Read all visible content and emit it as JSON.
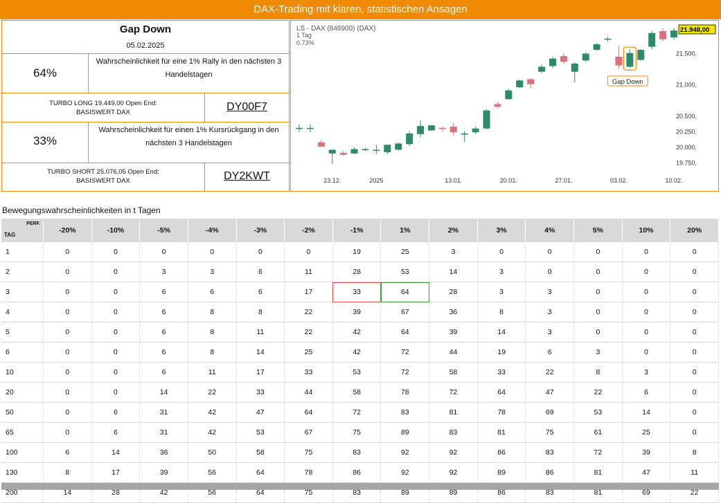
{
  "banner": "DAX-Trading mit klaren, statistischen Ansagen",
  "summary": {
    "title": "Gap Down",
    "date": "05.02.2025",
    "long_pct": "64%",
    "long_text": "Wahrscheinlichkeit für eine 1% Rally in den nächsten 3 Handelstagen",
    "long_product": "TURBO LONG 19.449,00 Open End: BASISWERT DAX",
    "long_wkn": "DY00F7",
    "short_pct": "33%",
    "short_text": "Wahrscheinlichkeit für einen 1% Kursrückgang in den nächsten 3 Handelstagen",
    "short_product": "TURBO SHORT 25.076,05 Open End: BASISWERT DAX",
    "short_wkn": "DY2KWT"
  },
  "chart_data": {
    "type": "candlestick",
    "header_line1": "LS - DAX (846900) (DAX)",
    "header_line2": "1 Tag",
    "header_line3": "0.73%",
    "last_price_label": "21.948,00",
    "annotation": "Gap Down",
    "y_ticks": [
      {
        "v": 21500,
        "label": "21.500,"
      },
      {
        "v": 21000,
        "label": "21.000,"
      },
      {
        "v": 20500,
        "label": "20.500,"
      },
      {
        "v": 20250,
        "label": "20.250,"
      },
      {
        "v": 20000,
        "label": "20.000,"
      },
      {
        "v": 19750,
        "label": "19.750,"
      }
    ],
    "x_ticks": [
      {
        "i": 3,
        "label": "23.12."
      },
      {
        "i": 7,
        "label": "2025"
      },
      {
        "i": 14,
        "label": "13.01."
      },
      {
        "i": 19,
        "label": "20.01."
      },
      {
        "i": 24,
        "label": "27.01."
      },
      {
        "i": 29,
        "label": "03.02."
      },
      {
        "i": 34,
        "label": "10.02."
      }
    ],
    "ylim": [
      19600,
      21950
    ],
    "candles": [
      {
        "o": 20300,
        "h": 20360,
        "l": 20230,
        "c": 20300
      },
      {
        "o": 20300,
        "h": 20360,
        "l": 20230,
        "c": 20300
      },
      {
        "o": 20070,
        "h": 20110,
        "l": 19990,
        "c": 20000
      },
      {
        "o": 19890,
        "h": 19940,
        "l": 19720,
        "c": 19950
      },
      {
        "o": 19900,
        "h": 19930,
        "l": 19850,
        "c": 19870
      },
      {
        "o": 19890,
        "h": 19990,
        "l": 19880,
        "c": 19960
      },
      {
        "o": 19950,
        "h": 19980,
        "l": 19930,
        "c": 19960
      },
      {
        "o": 19950,
        "h": 20030,
        "l": 19880,
        "c": 19950
      },
      {
        "o": 19910,
        "h": 20010,
        "l": 19880,
        "c": 20030
      },
      {
        "o": 19950,
        "h": 20070,
        "l": 19940,
        "c": 20050
      },
      {
        "o": 20040,
        "h": 20250,
        "l": 20010,
        "c": 20210
      },
      {
        "o": 20200,
        "h": 20420,
        "l": 20150,
        "c": 20330
      },
      {
        "o": 20260,
        "h": 20350,
        "l": 20250,
        "c": 20340
      },
      {
        "o": 20300,
        "h": 20320,
        "l": 20250,
        "c": 20290
      },
      {
        "o": 20320,
        "h": 20380,
        "l": 20180,
        "c": 20230
      },
      {
        "o": 20200,
        "h": 20250,
        "l": 20070,
        "c": 20210
      },
      {
        "o": 20230,
        "h": 20320,
        "l": 20200,
        "c": 20290
      },
      {
        "o": 20290,
        "h": 20600,
        "l": 20280,
        "c": 20580
      },
      {
        "o": 20680,
        "h": 20710,
        "l": 20610,
        "c": 20640
      },
      {
        "o": 20760,
        "h": 20930,
        "l": 20750,
        "c": 20900
      },
      {
        "o": 20950,
        "h": 21070,
        "l": 20940,
        "c": 21060
      },
      {
        "o": 21080,
        "h": 21100,
        "l": 20930,
        "c": 21000
      },
      {
        "o": 21200,
        "h": 21320,
        "l": 21180,
        "c": 21280
      },
      {
        "o": 21290,
        "h": 21440,
        "l": 21260,
        "c": 21410
      },
      {
        "o": 21450,
        "h": 21500,
        "l": 21330,
        "c": 21360
      },
      {
        "o": 21200,
        "h": 21350,
        "l": 21030,
        "c": 21330
      },
      {
        "o": 21380,
        "h": 21510,
        "l": 21360,
        "c": 21490
      },
      {
        "o": 21550,
        "h": 21660,
        "l": 21540,
        "c": 21640
      },
      {
        "o": 21720,
        "h": 21760,
        "l": 21680,
        "c": 21730
      },
      {
        "o": 21440,
        "h": 21620,
        "l": 21240,
        "c": 21300
      },
      {
        "o": 21280,
        "h": 21560,
        "l": 21260,
        "c": 21500
      },
      {
        "o": 21390,
        "h": 21560,
        "l": 21370,
        "c": 21550
      },
      {
        "o": 21600,
        "h": 21850,
        "l": 21560,
        "c": 21820
      },
      {
        "o": 21850,
        "h": 21900,
        "l": 21690,
        "c": 21720
      },
      {
        "o": 21750,
        "h": 21900,
        "l": 21720,
        "c": 21860
      }
    ],
    "colors": {
      "up": "#2e8b6a",
      "down": "#d9707a",
      "accent": "#f08a00"
    }
  },
  "table": {
    "title": "Bewegungswahrscheinlichkeiten in t Tagen",
    "tag_label": "TAG",
    "perf_label": "PERF.",
    "columns": [
      "-20%",
      "-10%",
      "-5%",
      "-4%",
      "-3%",
      "-2%",
      "-1%",
      "1%",
      "2%",
      "3%",
      "4%",
      "5%",
      "10%",
      "20%"
    ],
    "rows": [
      {
        "tag": "1",
        "values": [
          "0",
          "0",
          "0",
          "0",
          "0",
          "0",
          "19",
          "25",
          "3",
          "0",
          "0",
          "0",
          "0",
          "0"
        ]
      },
      {
        "tag": "2",
        "values": [
          "0",
          "0",
          "3",
          "3",
          "6",
          "11",
          "28",
          "53",
          "14",
          "3",
          "0",
          "0",
          "0",
          "0"
        ]
      },
      {
        "tag": "3",
        "values": [
          "0",
          "0",
          "6",
          "6",
          "6",
          "17",
          "33",
          "64",
          "28",
          "3",
          "3",
          "0",
          "0",
          "0"
        ]
      },
      {
        "tag": "4",
        "values": [
          "0",
          "0",
          "6",
          "8",
          "8",
          "22",
          "39",
          "67",
          "36",
          "8",
          "3",
          "0",
          "0",
          "0"
        ]
      },
      {
        "tag": "5",
        "values": [
          "0",
          "0",
          "6",
          "8",
          "11",
          "22",
          "42",
          "64",
          "39",
          "14",
          "3",
          "0",
          "0",
          "0"
        ]
      },
      {
        "tag": "6",
        "values": [
          "0",
          "0",
          "6",
          "8",
          "14",
          "25",
          "42",
          "72",
          "44",
          "19",
          "6",
          "3",
          "0",
          "0"
        ]
      },
      {
        "tag": "10",
        "values": [
          "0",
          "0",
          "6",
          "11",
          "17",
          "33",
          "53",
          "72",
          "58",
          "33",
          "22",
          "8",
          "3",
          "0"
        ]
      },
      {
        "tag": "20",
        "values": [
          "0",
          "0",
          "14",
          "22",
          "33",
          "44",
          "58",
          "78",
          "72",
          "64",
          "47",
          "22",
          "6",
          "0"
        ]
      },
      {
        "tag": "50",
        "values": [
          "0",
          "6",
          "31",
          "42",
          "47",
          "64",
          "72",
          "83",
          "81",
          "78",
          "69",
          "53",
          "14",
          "0"
        ]
      },
      {
        "tag": "65",
        "values": [
          "0",
          "6",
          "31",
          "42",
          "53",
          "67",
          "75",
          "89",
          "83",
          "81",
          "75",
          "61",
          "25",
          "0"
        ]
      },
      {
        "tag": "100",
        "values": [
          "6",
          "14",
          "36",
          "50",
          "58",
          "75",
          "83",
          "92",
          "92",
          "86",
          "83",
          "72",
          "39",
          "8"
        ]
      },
      {
        "tag": "130",
        "values": [
          "8",
          "17",
          "39",
          "56",
          "64",
          "78",
          "86",
          "92",
          "92",
          "89",
          "86",
          "81",
          "47",
          "11"
        ]
      },
      {
        "tag": "200",
        "values": [
          "14",
          "28",
          "42",
          "56",
          "64",
          "75",
          "83",
          "89",
          "89",
          "86",
          "83",
          "81",
          "69",
          "22"
        ]
      }
    ],
    "highlight_down": {
      "row": 2,
      "col": 6,
      "color": "#e05050"
    },
    "highlight_up": {
      "row": 2,
      "col": 7,
      "color": "#3a9a3a"
    }
  }
}
